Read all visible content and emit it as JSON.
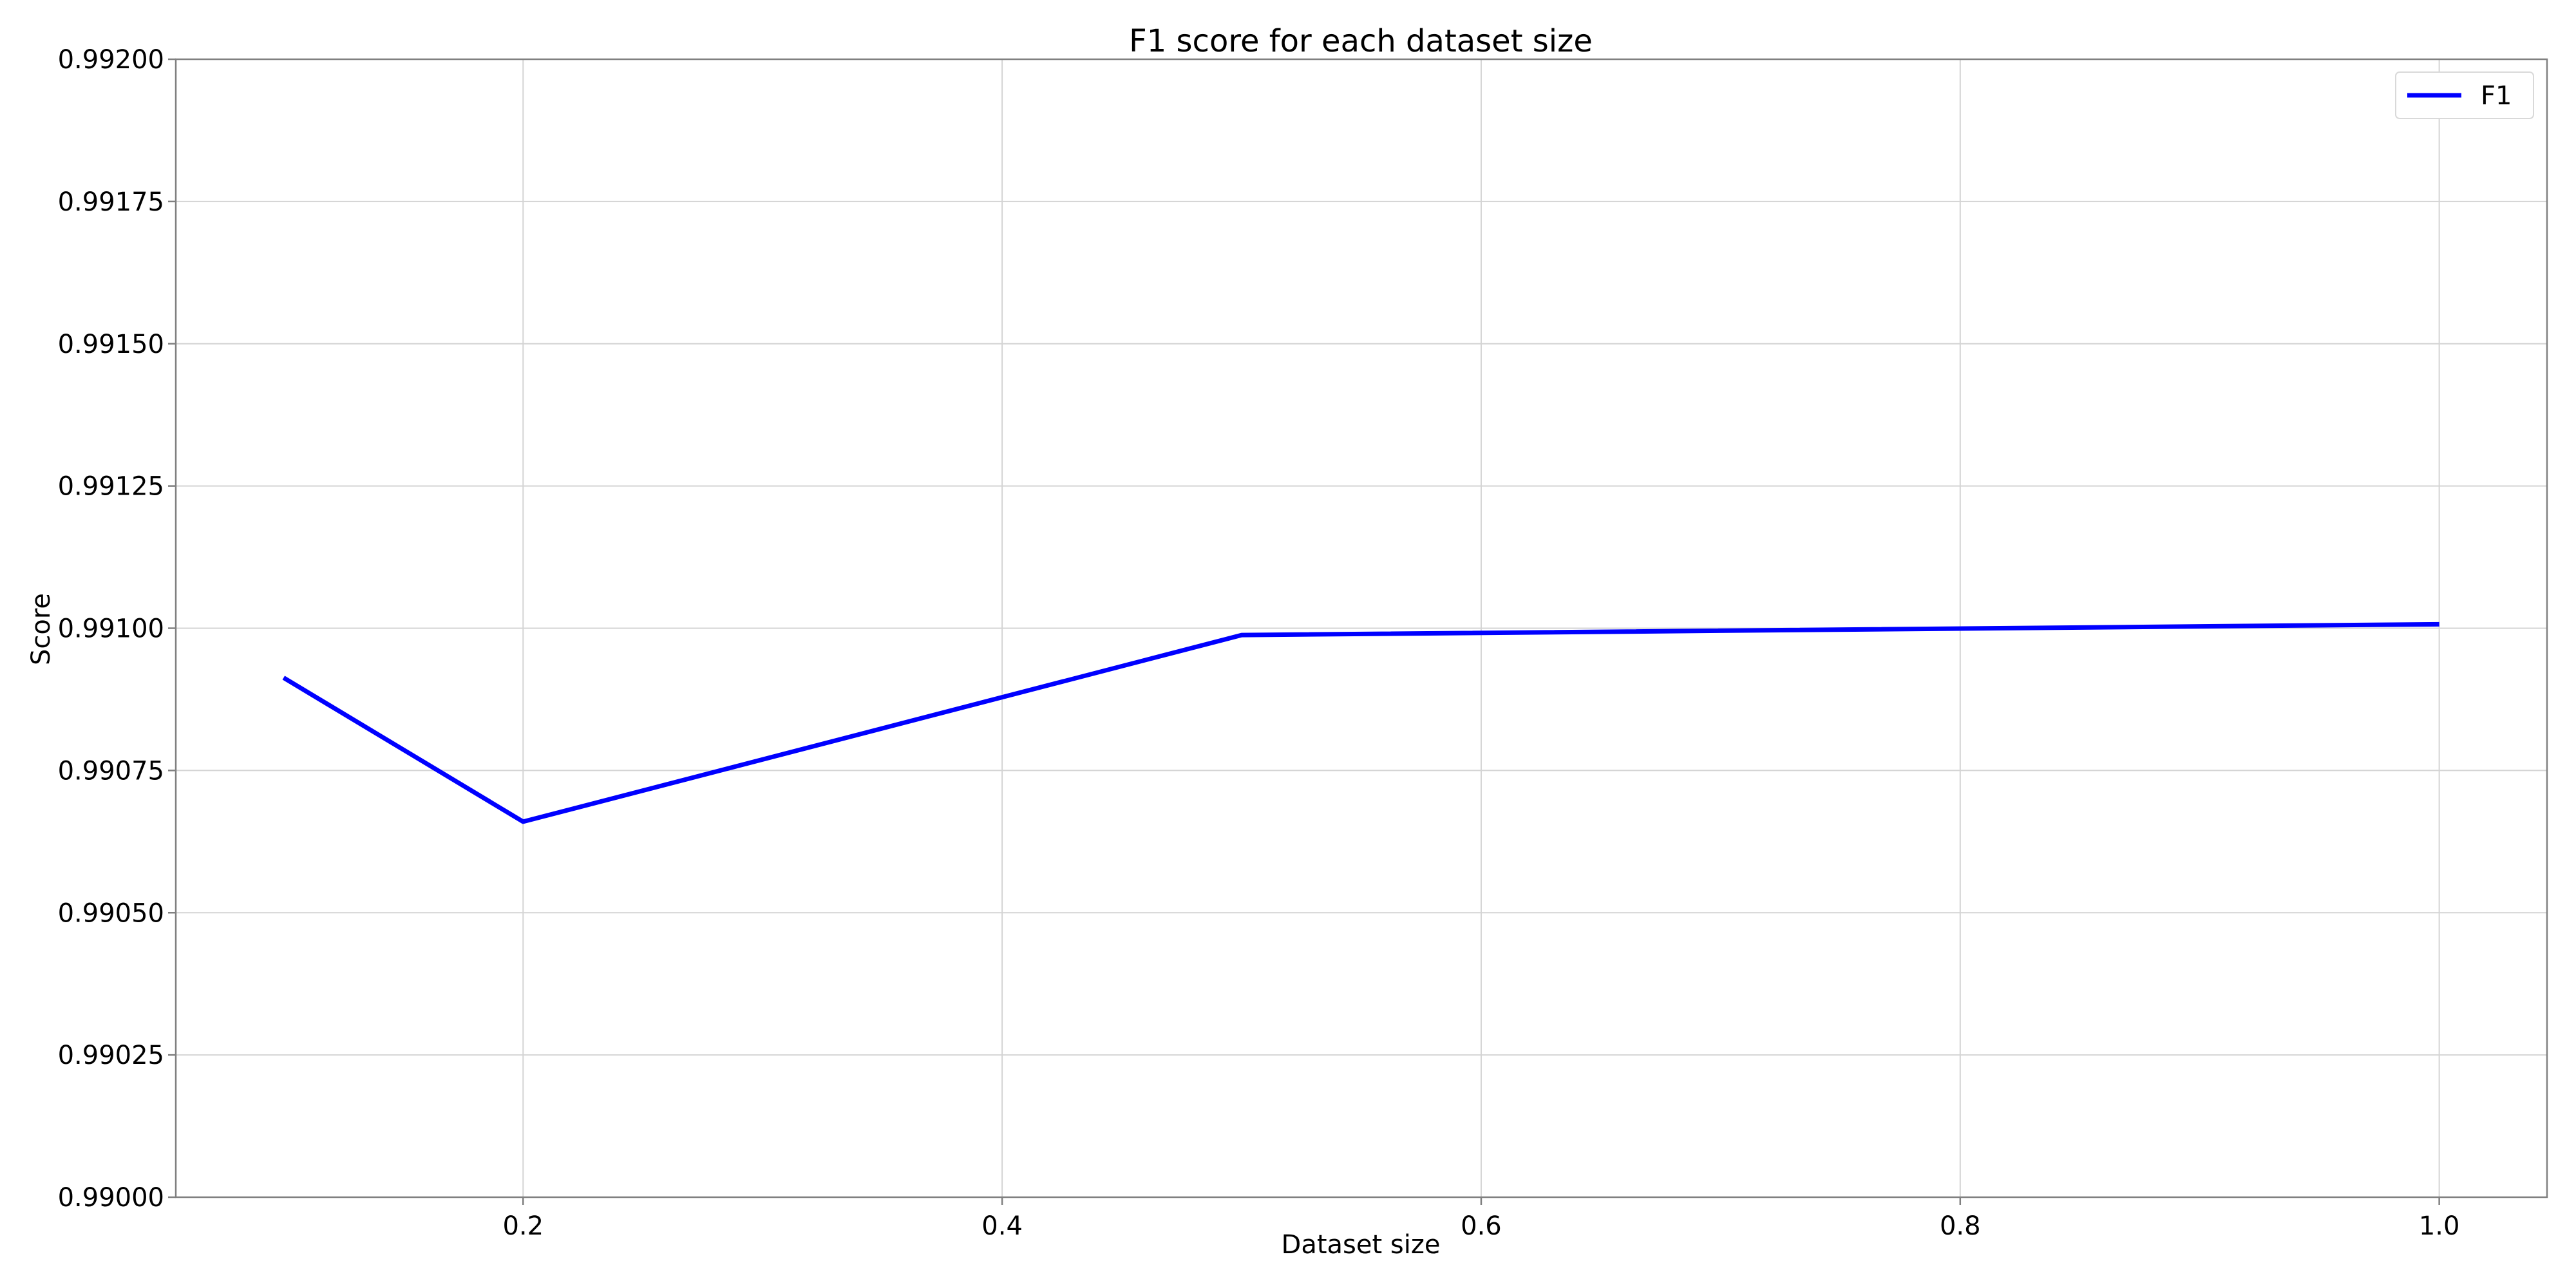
{
  "chart_data": {
    "type": "line",
    "title": "F1 score for each dataset size",
    "xlabel": "Dataset size",
    "ylabel": "Score",
    "xlim": [
      0.055,
      1.045
    ],
    "ylim": [
      0.99,
      0.992
    ],
    "x_ticks": [
      0.2,
      0.4,
      0.6,
      0.8,
      1.0
    ],
    "x_tick_labels": [
      "0.2",
      "0.4",
      "0.6",
      "0.8",
      "1.0"
    ],
    "y_ticks": [
      0.99,
      0.99025,
      0.9905,
      0.99075,
      0.991,
      0.99125,
      0.9915,
      0.99175,
      0.992
    ],
    "y_tick_labels": [
      "0.99000",
      "0.99025",
      "0.99050",
      "0.99075",
      "0.99100",
      "0.99125",
      "0.99150",
      "0.99175",
      "0.99200"
    ],
    "grid": true,
    "legend_position": "top-right",
    "series": [
      {
        "name": "F1",
        "color": "#0000ff",
        "x": [
          0.1,
          0.2,
          0.5,
          1.0
        ],
        "y": [
          0.990913,
          0.99066,
          0.990988,
          0.991007
        ]
      }
    ]
  }
}
